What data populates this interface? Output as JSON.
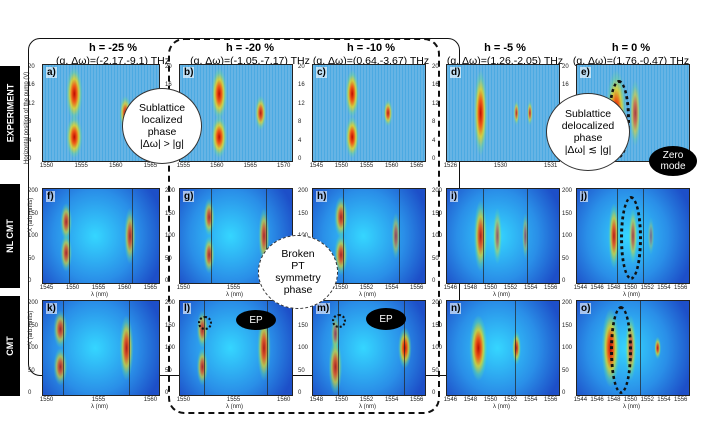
{
  "columns": [
    {
      "h": "h = -25 %",
      "g": "(g, Δω)=(-2.17,-9.1) THz"
    },
    {
      "h": "h = -20 %",
      "g": "(g, Δω)=(-1.05,-7.17) THz"
    },
    {
      "h": "h = -10 %",
      "g": "(g, Δω)=(0.64,-3.67) THz"
    },
    {
      "h": "h = -5 %",
      "g": "(g, Δω)=(1.26,-2.05) THz"
    },
    {
      "h": "h = 0 %",
      "g": "(g, Δω)=(1.76,-0.47) THz"
    }
  ],
  "rows": [
    "EXPERIMENT",
    "NL CMT",
    "CMT"
  ],
  "panel_labels": {
    "a": "a)",
    "b": "b)",
    "c": "c)",
    "d": "d)",
    "e": "e)",
    "f": "f)",
    "g": "g)",
    "h": "h)",
    "i": "i)",
    "j": "j)",
    "k": "k)",
    "l": "l)",
    "m": "m)",
    "n": "n)",
    "o": "o)"
  },
  "axes": {
    "exp_ylabel": "Horizontal position of the pump (V)",
    "sim_ylabel": "X (arb. units)",
    "xlabel": "λ (nm)",
    "exp_yticks": [
      "20",
      "16",
      "12",
      "8",
      "4",
      "0"
    ],
    "sim_yticks": [
      "200",
      "150",
      "100",
      "50",
      "0"
    ],
    "xticks": {
      "a": [
        "1550",
        "1555",
        "1560",
        "1565"
      ],
      "b": [
        "1555",
        "1560",
        "1565",
        "1570"
      ],
      "c": [
        "1545",
        "1550",
        "1555",
        "1560",
        "1565"
      ],
      "d": [
        "1526",
        "1530",
        "1531"
      ],
      "e": [
        "1525",
        "1530"
      ],
      "f": [
        "1545",
        "1550",
        "1555",
        "1560",
        "1565"
      ],
      "g": [
        "1550",
        "1555",
        "1560"
      ],
      "h": [
        "1548",
        "1550",
        "1552",
        "1554",
        "1556"
      ],
      "i": [
        "1546",
        "1548",
        "1550",
        "1552",
        "1554",
        "1556"
      ],
      "j": [
        "1544",
        "1546",
        "1548",
        "1550",
        "1552",
        "1554",
        "1556"
      ],
      "k": [
        "1550",
        "1555",
        "1560"
      ],
      "l": [
        "1550",
        "1555",
        "1560"
      ],
      "m": [
        "1548",
        "1550",
        "1552",
        "1554",
        "1556"
      ],
      "n": [
        "1546",
        "1548",
        "1550",
        "1552",
        "1554",
        "1556"
      ],
      "o": [
        "1544",
        "1546",
        "1548",
        "1550",
        "1552",
        "1554",
        "1556"
      ]
    }
  },
  "annotations": {
    "localized_line1": "Sublattice",
    "localized_line2": "localized",
    "localized_line3": "phase",
    "localized_line4": "|Δω| > |g|",
    "delocalized_line1": "Sublattice",
    "delocalized_line2": "delocalized",
    "delocalized_line3": "phase",
    "delocalized_line4": "|Δω| ≲ |g|",
    "broken_line1": "Broken",
    "broken_line2": "PT",
    "broken_line3": "symmetry",
    "broken_line4": "phase",
    "ep1": "EP",
    "ep2": "EP",
    "zero_mode_line1": "Zero",
    "zero_mode_line2": "mode"
  },
  "colors": {
    "background": "#4aa8e0",
    "hot": "#d21a00",
    "warm": "#ffd800"
  }
}
